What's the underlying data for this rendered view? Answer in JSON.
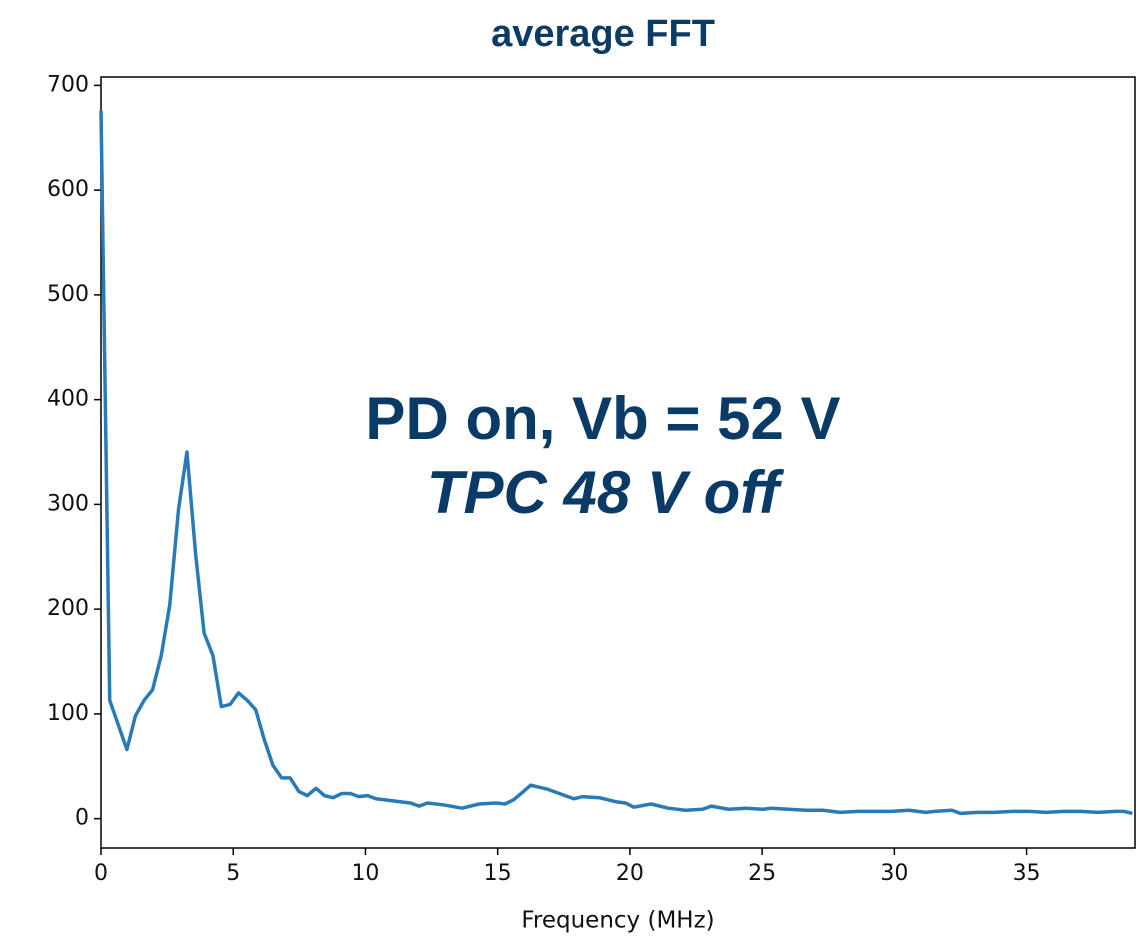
{
  "chart_data": {
    "type": "line",
    "title": "average FFT",
    "x_label": "Frequency (MHz)",
    "annotations": [
      "PD on, Vb = 52 V",
      "TPC 48 V off"
    ],
    "x": [
      0,
      0.33,
      0.98,
      1.3,
      1.63,
      1.95,
      2.28,
      2.6,
      2.93,
      3.25,
      3.58,
      3.9,
      4.23,
      4.55,
      4.88,
      5.2,
      5.53,
      5.85,
      6.18,
      6.5,
      6.83,
      7.15,
      7.48,
      7.8,
      8.13,
      8.45,
      8.78,
      9.1,
      9.43,
      9.75,
      10.08,
      10.4,
      11.05,
      11.7,
      12.03,
      12.35,
      13.0,
      13.65,
      14.3,
      14.95,
      15.28,
      15.6,
      15.93,
      16.25,
      16.9,
      17.55,
      17.88,
      18.2,
      18.85,
      19.5,
      19.83,
      20.15,
      20.8,
      21.45,
      22.1,
      22.75,
      23.08,
      23.73,
      24.38,
      25.03,
      25.35,
      26.0,
      26.65,
      27.3,
      27.95,
      28.6,
      29.25,
      29.9,
      30.55,
      31.2,
      31.53,
      32.18,
      32.5,
      33.15,
      33.8,
      34.45,
      35.1,
      35.75,
      36.4,
      37.05,
      37.7,
      38.35,
      38.68,
      39.0
    ],
    "series": [
      {
        "color": "#2a7ab8",
        "values": [
          676,
          113,
          66,
          98,
          113,
          123,
          156,
          204,
          295,
          350,
          252,
          177,
          156,
          107,
          109,
          120,
          113,
          104,
          75,
          51,
          39,
          39,
          26,
          22,
          29,
          22,
          20,
          24,
          24,
          21,
          22,
          19,
          17,
          15,
          12,
          15,
          13,
          10,
          14,
          15,
          14,
          18,
          25,
          32,
          28,
          22,
          19,
          21,
          20,
          16,
          15,
          11,
          14,
          10,
          8,
          9,
          12,
          9,
          10,
          9,
          10,
          9,
          8,
          8,
          6,
          7,
          7,
          7,
          8,
          6,
          7,
          8,
          5,
          6,
          6,
          7,
          7,
          6,
          7,
          7,
          6,
          7,
          7,
          5
        ]
      }
    ],
    "xlim": [
      0,
      39.1
    ],
    "ylim": [
      -28,
      708
    ],
    "xticks": [
      0,
      5,
      10,
      15,
      20,
      25,
      30,
      35
    ],
    "yticks": [
      0,
      100,
      200,
      300,
      400,
      500,
      600,
      700
    ]
  }
}
